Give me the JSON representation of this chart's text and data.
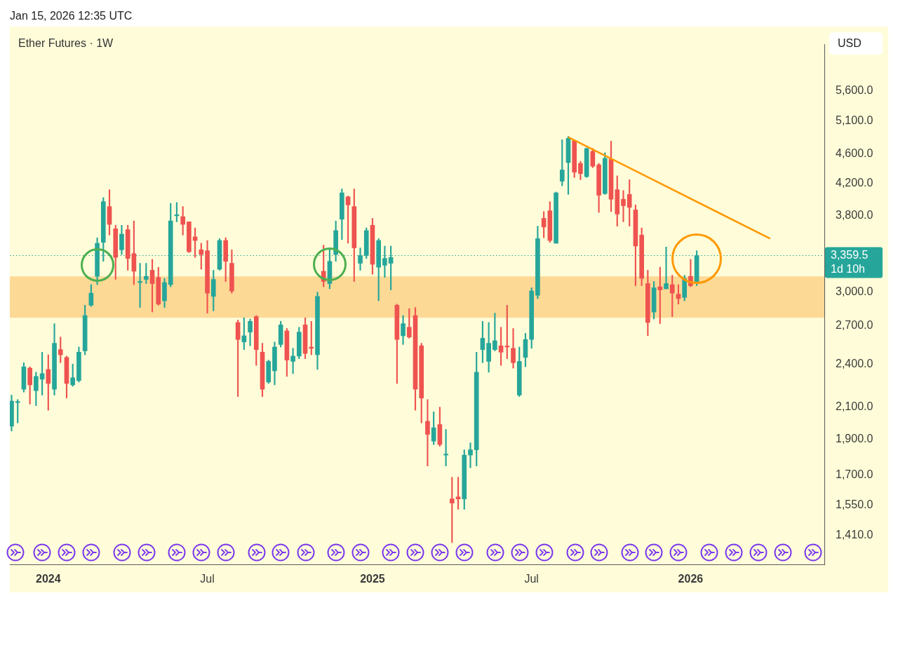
{
  "chart_data": {
    "type": "candlestick",
    "title": "Ether Futures · 1W",
    "ylabel": "USD",
    "annotations": [
      "Jan 15, 2026 12:35 UTC",
      "1d 10h"
    ],
    "log": "y",
    "grid": false,
    "legend": false,
    "xlim": [
      "2023-11-18",
      "2026-06-07"
    ],
    "xticks": [
      {
        "value": "2024-01-01",
        "label": "2024"
      },
      {
        "value": "2024-07-01",
        "label": "Jul"
      },
      {
        "value": "2025-01-06",
        "label": "2025"
      },
      {
        "value": "2025-07-07",
        "label": "Jul"
      },
      {
        "value": "2026-01-05",
        "label": "2026"
      }
    ],
    "ylim": [
      1290,
      6460
    ],
    "yticks": [
      {
        "value": 1410,
        "label": "1,410.0"
      },
      {
        "value": 1550,
        "label": "1,550.0"
      },
      {
        "value": 1700,
        "label": "1,700.0"
      },
      {
        "value": 1900,
        "label": "1,900.0"
      },
      {
        "value": 2100,
        "label": "2,100.0"
      },
      {
        "value": 2400,
        "label": "2,400.0"
      },
      {
        "value": 2700,
        "label": "2,700.0"
      },
      {
        "value": 3000,
        "label": "3,000.0"
      },
      {
        "value": 3800,
        "label": "3,800.0"
      },
      {
        "value": 4200,
        "label": "4,200.0"
      },
      {
        "value": 4600,
        "label": "4,600.0"
      },
      {
        "value": 5100,
        "label": "5,100.0"
      },
      {
        "value": 5600,
        "label": "5,600.0"
      }
    ],
    "bands": [
      {
        "axis": "y",
        "from": 2770,
        "to": 3150,
        "color": "#fdd996"
      }
    ],
    "ref_lines": [
      {
        "axis": "y",
        "value": 3359.5,
        "label": "3,359.5",
        "color": "#26a69a",
        "line_style": "dotted"
      }
    ],
    "x": [
      "2023-11-20",
      "2023-11-27",
      "2023-12-04",
      "2023-12-11",
      "2023-12-18",
      "2023-12-25",
      "2024-01-01",
      "2024-01-08",
      "2024-01-15",
      "2024-01-22",
      "2024-01-29",
      "2024-02-05",
      "2024-02-12",
      "2024-02-19",
      "2024-02-26",
      "2024-03-04",
      "2024-03-11",
      "2024-03-18",
      "2024-03-25",
      "2024-04-01",
      "2024-04-08",
      "2024-04-15",
      "2024-04-22",
      "2024-04-29",
      "2024-05-06",
      "2024-05-13",
      "2024-05-20",
      "2024-05-27",
      "2024-06-03",
      "2024-06-10",
      "2024-06-17",
      "2024-06-24",
      "2024-07-01",
      "2024-07-08",
      "2024-07-15",
      "2024-07-22",
      "2024-07-29",
      "2024-08-05",
      "2024-08-12",
      "2024-08-19",
      "2024-08-26",
      "2024-09-02",
      "2024-09-09",
      "2024-09-16",
      "2024-09-23",
      "2024-09-30",
      "2024-10-07",
      "2024-10-14",
      "2024-10-21",
      "2024-10-28",
      "2024-11-04",
      "2024-11-11",
      "2024-11-18",
      "2024-11-25",
      "2024-12-02",
      "2024-12-09",
      "2024-12-16",
      "2024-12-23",
      "2024-12-30",
      "2025-01-06",
      "2025-01-13",
      "2025-01-20",
      "2025-01-27",
      "2025-02-03",
      "2025-02-10",
      "2025-02-17",
      "2025-02-24",
      "2025-03-03",
      "2025-03-10",
      "2025-03-17",
      "2025-03-24",
      "2025-03-31",
      "2025-04-07",
      "2025-04-14",
      "2025-04-21",
      "2025-04-28",
      "2025-05-05",
      "2025-05-12",
      "2025-05-19",
      "2025-05-26",
      "2025-06-02",
      "2025-06-09",
      "2025-06-16",
      "2025-06-23",
      "2025-06-30",
      "2025-07-07",
      "2025-07-14",
      "2025-07-21",
      "2025-07-28",
      "2025-08-04",
      "2025-08-11",
      "2025-08-18",
      "2025-08-25",
      "2025-09-01",
      "2025-09-08",
      "2025-09-15",
      "2025-09-22",
      "2025-09-29",
      "2025-10-06",
      "2025-10-13",
      "2025-10-20",
      "2025-10-27",
      "2025-11-03",
      "2025-11-10",
      "2025-11-17",
      "2025-11-24",
      "2025-12-01",
      "2025-12-08",
      "2025-12-15",
      "2025-12-22",
      "2025-12-29",
      "2026-01-05",
      "2026-01-12"
    ],
    "ohlc": [
      [
        1980,
        2180,
        1950,
        2140
      ],
      [
        2130,
        2150,
        2000,
        2130
      ],
      [
        2220,
        2410,
        2200,
        2380
      ],
      [
        2370,
        2380,
        2120,
        2250
      ],
      [
        2210,
        2340,
        2110,
        2310
      ],
      [
        2290,
        2490,
        2180,
        2330
      ],
      [
        2360,
        2470,
        2080,
        2260
      ],
      [
        2220,
        2720,
        2180,
        2560
      ],
      [
        2510,
        2610,
        2410,
        2470
      ],
      [
        2450,
        2460,
        2160,
        2260
      ],
      [
        2250,
        2400,
        2240,
        2300
      ],
      [
        2280,
        2530,
        2270,
        2490
      ],
      [
        2500,
        2880,
        2470,
        2790
      ],
      [
        2880,
        3070,
        2870,
        2990
      ],
      [
        3150,
        3550,
        3070,
        3490
      ],
      [
        3500,
        4020,
        3300,
        3970
      ],
      [
        3910,
        4120,
        3580,
        3700
      ],
      [
        3650,
        3690,
        3120,
        3340
      ],
      [
        3420,
        3690,
        3370,
        3590
      ],
      [
        3640,
        3690,
        3210,
        3330
      ],
      [
        3380,
        3740,
        3070,
        3200
      ],
      [
        3090,
        3280,
        2860,
        3090
      ],
      [
        3120,
        3280,
        3080,
        3150
      ],
      [
        3210,
        3320,
        2820,
        3080
      ],
      [
        3140,
        3240,
        2880,
        2890
      ],
      [
        2920,
        3130,
        2860,
        3090
      ],
      [
        3070,
        3950,
        3050,
        3740
      ],
      [
        3800,
        3960,
        3730,
        3800
      ],
      [
        3790,
        3910,
        3580,
        3700
      ],
      [
        3730,
        3730,
        3390,
        3400
      ],
      [
        3560,
        3660,
        3340,
        3520
      ],
      [
        3420,
        3490,
        3220,
        3370
      ],
      [
        3410,
        3520,
        2810,
        2990
      ],
      [
        2960,
        3210,
        2830,
        3120
      ],
      [
        3220,
        3540,
        3210,
        3520
      ],
      [
        3520,
        3550,
        3100,
        3300
      ],
      [
        3280,
        3420,
        2990,
        3010
      ],
      [
        2730,
        2750,
        2170,
        2590
      ],
      [
        2570,
        2770,
        2510,
        2620
      ],
      [
        2650,
        2760,
        2540,
        2740
      ],
      [
        2780,
        2790,
        2390,
        2510
      ],
      [
        2490,
        2560,
        2170,
        2220
      ],
      [
        2270,
        2430,
        2260,
        2420
      ],
      [
        2350,
        2570,
        2250,
        2530
      ],
      [
        2550,
        2740,
        2530,
        2710
      ],
      [
        2660,
        2680,
        2310,
        2430
      ],
      [
        2420,
        2520,
        2330,
        2460
      ],
      [
        2460,
        2690,
        2440,
        2650
      ],
      [
        2710,
        2770,
        2440,
        2480
      ],
      [
        2530,
        2740,
        2470,
        2520
      ],
      [
        2470,
        3000,
        2360,
        2960
      ],
      [
        3200,
        3470,
        3050,
        3100
      ],
      [
        3080,
        3440,
        3030,
        3300
      ],
      [
        3370,
        3740,
        3300,
        3630
      ],
      [
        3760,
        4130,
        3530,
        4080
      ],
      [
        4030,
        4040,
        3490,
        3930
      ],
      [
        3910,
        4130,
        3100,
        3440
      ],
      [
        3280,
        3440,
        3210,
        3360
      ],
      [
        3360,
        3660,
        3330,
        3630
      ],
      [
        3690,
        3770,
        3170,
        3270
      ],
      [
        3240,
        3540,
        2920,
        3520
      ],
      [
        3260,
        3460,
        3140,
        3330
      ],
      [
        3280,
        3460,
        3020,
        3340
      ],
      [
        2880,
        2890,
        2260,
        2590
      ],
      [
        2620,
        2790,
        2550,
        2720
      ],
      [
        2690,
        2850,
        2600,
        2610
      ],
      [
        2790,
        2860,
        2080,
        2220
      ],
      [
        2540,
        2560,
        2000,
        2160
      ],
      [
        2010,
        2150,
        1750,
        1930
      ],
      [
        1890,
        2070,
        1870,
        1970
      ],
      [
        1990,
        2100,
        1860,
        1870
      ],
      [
        1810,
        1960,
        1750,
        1810
      ],
      [
        1580,
        1690,
        1380,
        1560
      ],
      [
        1590,
        1690,
        1530,
        1580
      ],
      [
        1580,
        1840,
        1530,
        1810
      ],
      [
        1810,
        1880,
        1740,
        1840
      ],
      [
        1840,
        2490,
        1750,
        2340
      ],
      [
        2510,
        2740,
        2410,
        2600
      ],
      [
        2420,
        2730,
        2340,
        2560
      ],
      [
        2510,
        2810,
        2500,
        2580
      ],
      [
        2540,
        2690,
        2390,
        2490
      ],
      [
        2530,
        2880,
        2440,
        2530
      ],
      [
        2520,
        2680,
        2370,
        2410
      ],
      [
        2180,
        2530,
        2170,
        2420
      ],
      [
        2450,
        2640,
        2380,
        2590
      ],
      [
        2590,
        3040,
        2520,
        3010
      ],
      [
        2970,
        3680,
        2940,
        3540
      ],
      [
        3770,
        3850,
        3550,
        3670
      ],
      [
        3860,
        3970,
        3500,
        3520
      ],
      [
        3490,
        4090,
        3490,
        4080
      ],
      [
        4230,
        4810,
        4170,
        4380
      ],
      [
        4480,
        4860,
        4060,
        4830
      ],
      [
        4800,
        4810,
        4280,
        4350
      ],
      [
        4470,
        4500,
        4250,
        4330
      ],
      [
        4290,
        4690,
        4280,
        4680
      ],
      [
        4640,
        4680,
        4410,
        4430
      ],
      [
        4450,
        4470,
        3840,
        4050
      ],
      [
        4070,
        4620,
        4060,
        4540
      ],
      [
        4530,
        4790,
        3850,
        4000
      ],
      [
        4120,
        4300,
        3680,
        3820
      ],
      [
        4000,
        4110,
        3730,
        3920
      ],
      [
        4060,
        4250,
        3680,
        3900
      ],
      [
        3870,
        3930,
        3060,
        3460
      ],
      [
        3580,
        3660,
        3060,
        3130
      ],
      [
        3080,
        3210,
        2620,
        2730
      ],
      [
        2820,
        3100,
        2760,
        3040
      ],
      [
        3050,
        3240,
        2720,
        3020
      ],
      [
        3030,
        3450,
        3030,
        3080
      ],
      [
        3070,
        3160,
        2780,
        2990
      ],
      [
        2980,
        3070,
        2890,
        2940
      ],
      [
        2950,
        3160,
        2920,
        3130
      ],
      [
        3150,
        3320,
        3050,
        3060
      ],
      [
        3100,
        3410,
        3060,
        3359.5
      ]
    ],
    "colors": [
      "#26a69a",
      "#26a69a",
      "#26a69a",
      "#ef5350",
      "#26a69a",
      "#26a69a",
      "#ef5350",
      "#26a69a",
      "#ef5350",
      "#ef5350",
      "#26a69a",
      "#26a69a",
      "#26a69a",
      "#26a69a",
      "#26a69a",
      "#26a69a",
      "#ef5350",
      "#ef5350",
      "#26a69a",
      "#ef5350",
      "#ef5350",
      "#26a69a",
      "#26a69a",
      "#ef5350",
      "#ef5350",
      "#26a69a",
      "#26a69a",
      "#26a69a",
      "#ef5350",
      "#ef5350",
      "#ef5350",
      "#ef5350",
      "#ef5350",
      "#26a69a",
      "#26a69a",
      "#ef5350",
      "#ef5350",
      "#ef5350",
      "#26a69a",
      "#26a69a",
      "#ef5350",
      "#ef5350",
      "#26a69a",
      "#26a69a",
      "#26a69a",
      "#ef5350",
      "#26a69a",
      "#26a69a",
      "#ef5350",
      "#ef5350",
      "#26a69a",
      "#ef5350",
      "#26a69a",
      "#26a69a",
      "#26a69a",
      "#ef5350",
      "#ef5350",
      "#26a69a",
      "#26a69a",
      "#ef5350",
      "#26a69a",
      "#26a69a",
      "#26a69a",
      "#ef5350",
      "#26a69a",
      "#ef5350",
      "#ef5350",
      "#ef5350",
      "#ef5350",
      "#26a69a",
      "#ef5350",
      "#26a69a",
      "#ef5350",
      "#ef5350",
      "#26a69a",
      "#26a69a",
      "#26a69a",
      "#26a69a",
      "#26a69a",
      "#26a69a",
      "#ef5350",
      "#ef5350",
      "#ef5350",
      "#26a69a",
      "#26a69a",
      "#26a69a",
      "#26a69a",
      "#ef5350",
      "#ef5350",
      "#26a69a",
      "#26a69a",
      "#26a69a",
      "#ef5350",
      "#ef5350",
      "#26a69a",
      "#ef5350",
      "#ef5350",
      "#26a69a",
      "#ef5350",
      "#ef5350",
      "#ef5350",
      "#ef5350",
      "#ef5350",
      "#ef5350",
      "#ef5350",
      "#26a69a",
      "#ef5350",
      "#26a69a",
      "#ef5350",
      "#ef5350",
      "#26a69a",
      "#ef5350",
      "#26a69a"
    ],
    "series": [
      {
        "type": "line",
        "color": "#ff9800",
        "x": [
          "2025-08-18",
          "2026-04-06"
        ],
        "values": [
          4850,
          3540
        ]
      }
    ]
  }
}
